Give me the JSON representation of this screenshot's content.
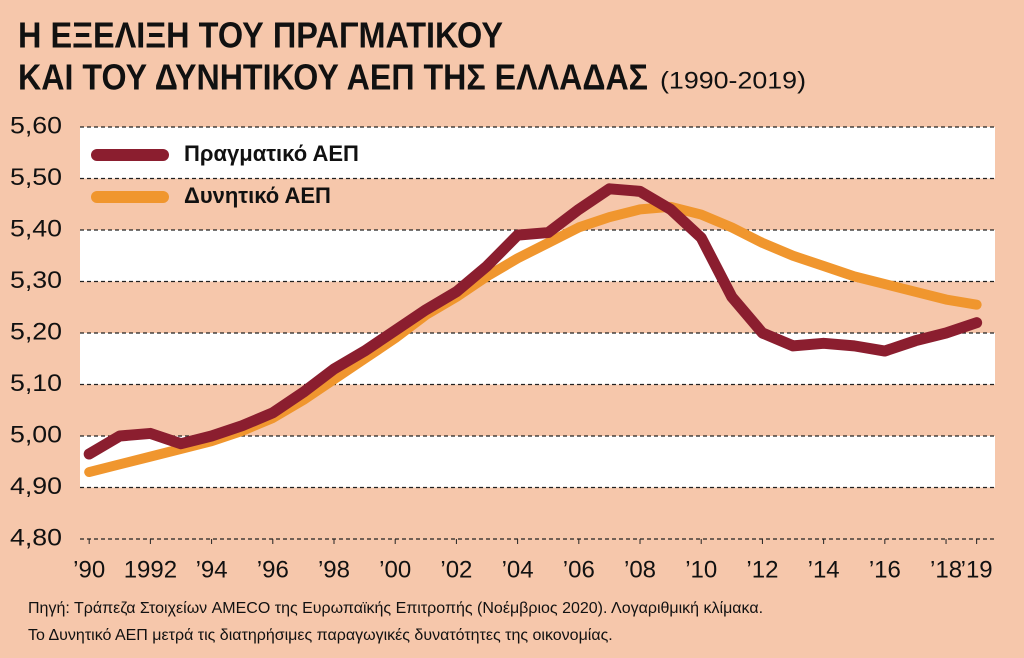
{
  "chart_data": {
    "type": "line",
    "title": [
      "Η ΕΞΕΛΙΞΗ ΤΟΥ ΠΡΑΓΜΑΤΙΚΟΥ",
      "ΚΑΙ ΤΟΥ ΔΥΝΗΤΙΚΟΥ ΑΕΠ ΤΗΣ ΕΛΛΑΔΑΣ"
    ],
    "subtitle": "(1990-2019)",
    "source": [
      "Πηγή: Τράπεζα Στοιχείων AMECO της Ευρωπαϊκής Επιτροπής (Νοέμβριος 2020). Λογαριθμική κλίμακα.",
      "Το Δυνητικό ΑΕΠ μετρά τις διατηρήσιμες παραγωγικές δυνατότητες της οικονομίας."
    ],
    "x": [
      1990,
      1991,
      1992,
      1993,
      1994,
      1995,
      1996,
      1997,
      1998,
      1999,
      2000,
      2001,
      2002,
      2003,
      2004,
      2005,
      2006,
      2007,
      2008,
      2009,
      2010,
      2011,
      2012,
      2013,
      2014,
      2015,
      2016,
      2017,
      2018,
      2019
    ],
    "series": [
      {
        "name": "Πραγματικό ΑΕΠ",
        "color": "#8b1e2f",
        "values": [
          4.965,
          5.0,
          5.005,
          4.985,
          5.0,
          5.02,
          5.045,
          5.085,
          5.13,
          5.165,
          5.205,
          5.245,
          5.28,
          5.33,
          5.39,
          5.395,
          5.44,
          5.48,
          5.475,
          5.44,
          5.385,
          5.27,
          5.2,
          5.175,
          5.18,
          5.175,
          5.165,
          5.185,
          5.2,
          5.22
        ]
      },
      {
        "name": "Δυνητικό ΑΕΠ",
        "color": "#f0962e",
        "values": [
          4.93,
          4.945,
          4.96,
          4.975,
          4.99,
          5.01,
          5.035,
          5.07,
          5.11,
          5.15,
          5.19,
          5.235,
          5.27,
          5.31,
          5.345,
          5.375,
          5.405,
          5.425,
          5.44,
          5.445,
          5.43,
          5.405,
          5.375,
          5.35,
          5.33,
          5.31,
          5.295,
          5.28,
          5.265,
          5.255
        ]
      }
    ],
    "xlim": [
      1989.7,
      2019.6
    ],
    "xticks": [
      {
        "value": 1990,
        "label": "’90"
      },
      1992,
      {
        "value": 1994,
        "label": "’94"
      },
      {
        "value": 1996,
        "label": "’96"
      },
      {
        "value": 1998,
        "label": "’98"
      },
      {
        "value": 2000,
        "label": "’00"
      },
      {
        "value": 2002,
        "label": "’02"
      },
      {
        "value": 2004,
        "label": "’04"
      },
      {
        "value": 2006,
        "label": "’06"
      },
      {
        "value": 2008,
        "label": "’08"
      },
      {
        "value": 2010,
        "label": "’10"
      },
      {
        "value": 2012,
        "label": "’12"
      },
      {
        "value": 2014,
        "label": "’14"
      },
      {
        "value": 2016,
        "label": "’16"
      },
      {
        "value": 2018,
        "label": "’18"
      },
      {
        "value": 2019,
        "label": "’19"
      }
    ],
    "ylim": [
      4.8,
      5.6
    ],
    "yticks": [
      {
        "value": 4.8,
        "label": "4,80"
      },
      {
        "value": 4.9,
        "label": "4,90"
      },
      {
        "value": 5.0,
        "label": "5,00"
      },
      {
        "value": 5.1,
        "label": "5,10"
      },
      {
        "value": 5.2,
        "label": "5,20"
      },
      {
        "value": 5.3,
        "label": "5,30"
      },
      {
        "value": 5.4,
        "label": "5,40"
      },
      {
        "value": 5.5,
        "label": "5,50"
      },
      {
        "value": 5.6,
        "label": "5,60"
      }
    ],
    "grid": true,
    "legend": "top-left"
  }
}
